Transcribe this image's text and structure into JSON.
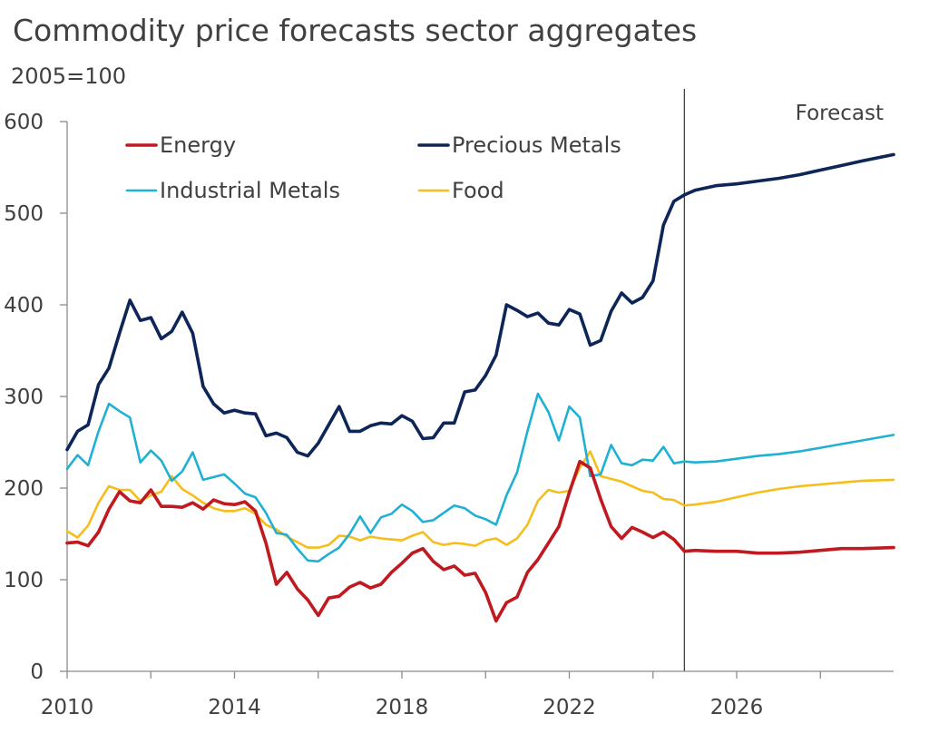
{
  "chart_data": {
    "type": "line",
    "title": "Commodity price forecasts sector aggregates",
    "unit_label": "2005=100",
    "annotation": "Forecast",
    "forecast_start": 2024.75,
    "xlim": [
      2010,
      2029.75
    ],
    "ylim": [
      0,
      600
    ],
    "y_ticks": [
      0,
      100,
      200,
      300,
      400,
      500,
      600
    ],
    "x_ticks": [
      2010,
      2012,
      2014,
      2016,
      2018,
      2020,
      2022,
      2024,
      2026,
      2028
    ],
    "x_tick_labels": [
      "2010",
      "2014",
      "2018",
      "2022",
      "2026"
    ],
    "x_labeled_values": [
      2010,
      2014,
      2018,
      2022,
      2026
    ],
    "grid": false,
    "legend_position": "top-left",
    "series": [
      {
        "name": "Energy",
        "color": "#C0191F",
        "values": [
          [
            2010,
            140
          ],
          [
            2010.25,
            141
          ],
          [
            2010.5,
            137
          ],
          [
            2010.75,
            152
          ],
          [
            2011,
            177
          ],
          [
            2011.25,
            196
          ],
          [
            2011.5,
            186
          ],
          [
            2011.75,
            184
          ],
          [
            2012,
            198
          ],
          [
            2012.25,
            180
          ],
          [
            2012.5,
            180
          ],
          [
            2012.75,
            179
          ],
          [
            2013,
            184
          ],
          [
            2013.25,
            177
          ],
          [
            2013.5,
            187
          ],
          [
            2013.75,
            183
          ],
          [
            2014,
            182
          ],
          [
            2014.25,
            185
          ],
          [
            2014.5,
            175
          ],
          [
            2014.75,
            140
          ],
          [
            2015,
            95
          ],
          [
            2015.25,
            108
          ],
          [
            2015.5,
            90
          ],
          [
            2015.75,
            78
          ],
          [
            2016,
            61
          ],
          [
            2016.25,
            80
          ],
          [
            2016.5,
            82
          ],
          [
            2016.75,
            92
          ],
          [
            2017,
            97
          ],
          [
            2017.25,
            91
          ],
          [
            2017.5,
            95
          ],
          [
            2017.75,
            108
          ],
          [
            2018,
            118
          ],
          [
            2018.25,
            129
          ],
          [
            2018.5,
            134
          ],
          [
            2018.75,
            120
          ],
          [
            2019,
            111
          ],
          [
            2019.25,
            115
          ],
          [
            2019.5,
            105
          ],
          [
            2019.75,
            107
          ],
          [
            2020,
            86
          ],
          [
            2020.25,
            55
          ],
          [
            2020.5,
            75
          ],
          [
            2020.75,
            81
          ],
          [
            2021,
            108
          ],
          [
            2021.25,
            122
          ],
          [
            2021.5,
            140
          ],
          [
            2021.75,
            158
          ],
          [
            2022,
            195
          ],
          [
            2022.25,
            229
          ],
          [
            2022.5,
            222
          ],
          [
            2022.75,
            188
          ],
          [
            2023,
            158
          ],
          [
            2023.25,
            145
          ],
          [
            2023.5,
            157
          ],
          [
            2023.75,
            152
          ],
          [
            2024,
            146
          ],
          [
            2024.25,
            152
          ],
          [
            2024.5,
            144
          ],
          [
            2024.75,
            131
          ],
          [
            2025,
            132
          ],
          [
            2025.5,
            131
          ],
          [
            2026,
            131
          ],
          [
            2026.5,
            129
          ],
          [
            2027,
            129
          ],
          [
            2027.5,
            130
          ],
          [
            2028,
            132
          ],
          [
            2028.5,
            134
          ],
          [
            2029,
            134
          ],
          [
            2029.75,
            135
          ]
        ]
      },
      {
        "name": "Precious Metals",
        "color": "#0D2557",
        "values": [
          [
            2010,
            242
          ],
          [
            2010.25,
            262
          ],
          [
            2010.5,
            269
          ],
          [
            2010.75,
            313
          ],
          [
            2011,
            331
          ],
          [
            2011.25,
            369
          ],
          [
            2011.5,
            405
          ],
          [
            2011.75,
            383
          ],
          [
            2012,
            386
          ],
          [
            2012.25,
            363
          ],
          [
            2012.5,
            371
          ],
          [
            2012.75,
            392
          ],
          [
            2013,
            369
          ],
          [
            2013.25,
            311
          ],
          [
            2013.5,
            292
          ],
          [
            2013.75,
            282
          ],
          [
            2014,
            285
          ],
          [
            2014.25,
            282
          ],
          [
            2014.5,
            281
          ],
          [
            2014.75,
            257
          ],
          [
            2015,
            260
          ],
          [
            2015.25,
            255
          ],
          [
            2015.5,
            239
          ],
          [
            2015.75,
            235
          ],
          [
            2016,
            249
          ],
          [
            2016.25,
            269
          ],
          [
            2016.5,
            289
          ],
          [
            2016.75,
            262
          ],
          [
            2017,
            262
          ],
          [
            2017.25,
            268
          ],
          [
            2017.5,
            271
          ],
          [
            2017.75,
            270
          ],
          [
            2018,
            279
          ],
          [
            2018.25,
            273
          ],
          [
            2018.5,
            254
          ],
          [
            2018.75,
            255
          ],
          [
            2019,
            271
          ],
          [
            2019.25,
            271
          ],
          [
            2019.5,
            305
          ],
          [
            2019.75,
            307
          ],
          [
            2020,
            323
          ],
          [
            2020.25,
            345
          ],
          [
            2020.5,
            400
          ],
          [
            2020.75,
            394
          ],
          [
            2021,
            387
          ],
          [
            2021.25,
            391
          ],
          [
            2021.5,
            380
          ],
          [
            2021.75,
            378
          ],
          [
            2022,
            395
          ],
          [
            2022.25,
            390
          ],
          [
            2022.5,
            356
          ],
          [
            2022.75,
            361
          ],
          [
            2023,
            393
          ],
          [
            2023.25,
            413
          ],
          [
            2023.5,
            402
          ],
          [
            2023.75,
            408
          ],
          [
            2024,
            426
          ],
          [
            2024.25,
            487
          ],
          [
            2024.5,
            513
          ],
          [
            2024.75,
            520
          ],
          [
            2025,
            525
          ],
          [
            2025.5,
            530
          ],
          [
            2026,
            532
          ],
          [
            2026.5,
            535
          ],
          [
            2027,
            538
          ],
          [
            2027.5,
            542
          ],
          [
            2028,
            547
          ],
          [
            2028.5,
            552
          ],
          [
            2029,
            557
          ],
          [
            2029.75,
            564
          ]
        ]
      },
      {
        "name": "Industrial Metals",
        "color": "#1FB1D3",
        "values": [
          [
            2010,
            221
          ],
          [
            2010.25,
            236
          ],
          [
            2010.5,
            225
          ],
          [
            2010.75,
            262
          ],
          [
            2011,
            292
          ],
          [
            2011.25,
            284
          ],
          [
            2011.5,
            277
          ],
          [
            2011.75,
            228
          ],
          [
            2012,
            241
          ],
          [
            2012.25,
            230
          ],
          [
            2012.5,
            208
          ],
          [
            2012.75,
            218
          ],
          [
            2013,
            239
          ],
          [
            2013.25,
            209
          ],
          [
            2013.5,
            212
          ],
          [
            2013.75,
            215
          ],
          [
            2014,
            205
          ],
          [
            2014.25,
            194
          ],
          [
            2014.5,
            190
          ],
          [
            2014.75,
            173
          ],
          [
            2015,
            151
          ],
          [
            2015.25,
            149
          ],
          [
            2015.5,
            134
          ],
          [
            2015.75,
            121
          ],
          [
            2016,
            120
          ],
          [
            2016.25,
            128
          ],
          [
            2016.5,
            135
          ],
          [
            2016.75,
            150
          ],
          [
            2017,
            169
          ],
          [
            2017.25,
            151
          ],
          [
            2017.5,
            168
          ],
          [
            2017.75,
            172
          ],
          [
            2018,
            182
          ],
          [
            2018.25,
            175
          ],
          [
            2018.5,
            163
          ],
          [
            2018.75,
            165
          ],
          [
            2019,
            173
          ],
          [
            2019.25,
            181
          ],
          [
            2019.5,
            178
          ],
          [
            2019.75,
            170
          ],
          [
            2020,
            166
          ],
          [
            2020.25,
            160
          ],
          [
            2020.5,
            192
          ],
          [
            2020.75,
            217
          ],
          [
            2021,
            262
          ],
          [
            2021.25,
            303
          ],
          [
            2021.5,
            283
          ],
          [
            2021.75,
            252
          ],
          [
            2022,
            289
          ],
          [
            2022.25,
            277
          ],
          [
            2022.5,
            213
          ],
          [
            2022.75,
            215
          ],
          [
            2023,
            247
          ],
          [
            2023.25,
            227
          ],
          [
            2023.5,
            225
          ],
          [
            2023.75,
            231
          ],
          [
            2024,
            230
          ],
          [
            2024.25,
            245
          ],
          [
            2024.5,
            227
          ],
          [
            2024.75,
            229
          ],
          [
            2025,
            228
          ],
          [
            2025.5,
            229
          ],
          [
            2026,
            232
          ],
          [
            2026.5,
            235
          ],
          [
            2027,
            237
          ],
          [
            2027.5,
            240
          ],
          [
            2028,
            244
          ],
          [
            2028.5,
            248
          ],
          [
            2029,
            252
          ],
          [
            2029.75,
            258
          ]
        ]
      },
      {
        "name": "Food",
        "color": "#F5BE1A",
        "values": [
          [
            2010,
            153
          ],
          [
            2010.25,
            146
          ],
          [
            2010.5,
            159
          ],
          [
            2010.75,
            184
          ],
          [
            2011,
            202
          ],
          [
            2011.25,
            198
          ],
          [
            2011.5,
            198
          ],
          [
            2011.75,
            186
          ],
          [
            2012,
            192
          ],
          [
            2012.25,
            196
          ],
          [
            2012.5,
            213
          ],
          [
            2012.75,
            199
          ],
          [
            2013,
            192
          ],
          [
            2013.25,
            184
          ],
          [
            2013.5,
            178
          ],
          [
            2013.75,
            175
          ],
          [
            2014,
            175
          ],
          [
            2014.25,
            178
          ],
          [
            2014.5,
            172
          ],
          [
            2014.75,
            160
          ],
          [
            2015,
            155
          ],
          [
            2015.25,
            147
          ],
          [
            2015.5,
            141
          ],
          [
            2015.75,
            135
          ],
          [
            2016,
            135
          ],
          [
            2016.25,
            138
          ],
          [
            2016.5,
            148
          ],
          [
            2016.75,
            147
          ],
          [
            2017,
            143
          ],
          [
            2017.25,
            147
          ],
          [
            2017.5,
            145
          ],
          [
            2017.75,
            144
          ],
          [
            2018,
            143
          ],
          [
            2018.25,
            148
          ],
          [
            2018.5,
            152
          ],
          [
            2018.75,
            141
          ],
          [
            2019,
            138
          ],
          [
            2019.25,
            140
          ],
          [
            2019.5,
            139
          ],
          [
            2019.75,
            137
          ],
          [
            2020,
            143
          ],
          [
            2020.25,
            145
          ],
          [
            2020.5,
            138
          ],
          [
            2020.75,
            145
          ],
          [
            2021,
            160
          ],
          [
            2021.25,
            186
          ],
          [
            2021.5,
            198
          ],
          [
            2021.75,
            195
          ],
          [
            2022,
            197
          ],
          [
            2022.25,
            222
          ],
          [
            2022.5,
            240
          ],
          [
            2022.75,
            213
          ],
          [
            2023,
            210
          ],
          [
            2023.25,
            207
          ],
          [
            2023.5,
            202
          ],
          [
            2023.75,
            197
          ],
          [
            2024,
            195
          ],
          [
            2024.25,
            188
          ],
          [
            2024.5,
            187
          ],
          [
            2024.75,
            181
          ],
          [
            2025,
            182
          ],
          [
            2025.5,
            185
          ],
          [
            2026,
            190
          ],
          [
            2026.5,
            195
          ],
          [
            2027,
            199
          ],
          [
            2027.5,
            202
          ],
          [
            2028,
            204
          ],
          [
            2028.5,
            206
          ],
          [
            2029,
            208
          ],
          [
            2029.75,
            209
          ]
        ]
      }
    ]
  }
}
